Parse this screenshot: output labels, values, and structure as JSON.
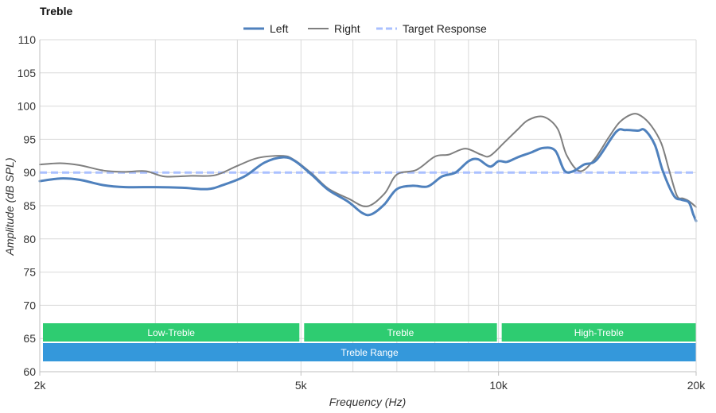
{
  "chart_data": {
    "type": "line",
    "title": "Treble",
    "xlabel": "Frequency (Hz)",
    "ylabel": "Amplitude (dB SPL)",
    "xscale": "log",
    "xlim": [
      2000,
      20000
    ],
    "ylim": [
      60,
      110
    ],
    "xticks": [
      {
        "value": 2000,
        "label": "2k"
      },
      {
        "value": 5000,
        "label": "5k"
      },
      {
        "value": 10000,
        "label": "10k"
      },
      {
        "value": 20000,
        "label": "20k"
      }
    ],
    "x_grid": [
      3000,
      4000,
      5000,
      6000,
      7000,
      8000,
      9000,
      10000
    ],
    "yticks": [
      60,
      65,
      70,
      75,
      80,
      85,
      90,
      95,
      100,
      105,
      110
    ],
    "grid": true,
    "legend_position": "top-center",
    "series": [
      {
        "name": "Left",
        "color": "#4f81bd",
        "style": "solid",
        "points": [
          [
            2000,
            88.7
          ],
          [
            2150,
            89.1
          ],
          [
            2300,
            88.9
          ],
          [
            2500,
            88.1
          ],
          [
            2700,
            87.8
          ],
          [
            3000,
            87.8
          ],
          [
            3300,
            87.7
          ],
          [
            3600,
            87.5
          ],
          [
            3800,
            88.1
          ],
          [
            4100,
            89.4
          ],
          [
            4400,
            91.5
          ],
          [
            4700,
            92.3
          ],
          [
            4900,
            91.7
          ],
          [
            5200,
            89.6
          ],
          [
            5500,
            87.4
          ],
          [
            5900,
            85.6
          ],
          [
            6200,
            83.9
          ],
          [
            6400,
            83.7
          ],
          [
            6700,
            85.2
          ],
          [
            7000,
            87.5
          ],
          [
            7400,
            88.0
          ],
          [
            7800,
            87.9
          ],
          [
            8200,
            89.4
          ],
          [
            8600,
            90.0
          ],
          [
            9000,
            91.7
          ],
          [
            9300,
            92.0
          ],
          [
            9700,
            90.9
          ],
          [
            10000,
            91.7
          ],
          [
            10300,
            91.6
          ],
          [
            10700,
            92.3
          ],
          [
            11200,
            93.0
          ],
          [
            11700,
            93.7
          ],
          [
            12200,
            93.3
          ],
          [
            12600,
            90.3
          ],
          [
            13000,
            90.2
          ],
          [
            13500,
            91.2
          ],
          [
            14100,
            91.9
          ],
          [
            15100,
            96.1
          ],
          [
            15600,
            96.4
          ],
          [
            16300,
            96.3
          ],
          [
            16700,
            96.4
          ],
          [
            17300,
            94.2
          ],
          [
            17800,
            90.2
          ],
          [
            18500,
            86.5
          ],
          [
            19000,
            85.9
          ],
          [
            19500,
            85.5
          ],
          [
            19800,
            83.7
          ],
          [
            20000,
            82.7
          ]
        ]
      },
      {
        "name": "Right",
        "color": "#7f7f7f",
        "style": "solid",
        "points": [
          [
            2000,
            91.2
          ],
          [
            2150,
            91.4
          ],
          [
            2300,
            91.1
          ],
          [
            2500,
            90.3
          ],
          [
            2700,
            90.1
          ],
          [
            2900,
            90.2
          ],
          [
            3100,
            89.4
          ],
          [
            3400,
            89.5
          ],
          [
            3700,
            89.6
          ],
          [
            4000,
            91.0
          ],
          [
            4300,
            92.2
          ],
          [
            4700,
            92.5
          ],
          [
            4900,
            91.8
          ],
          [
            5200,
            89.8
          ],
          [
            5500,
            87.6
          ],
          [
            5900,
            86.1
          ],
          [
            6300,
            84.9
          ],
          [
            6700,
            86.8
          ],
          [
            7000,
            89.7
          ],
          [
            7500,
            90.4
          ],
          [
            8000,
            92.4
          ],
          [
            8400,
            92.7
          ],
          [
            8900,
            93.6
          ],
          [
            9400,
            92.7
          ],
          [
            9700,
            92.5
          ],
          [
            10200,
            94.5
          ],
          [
            10700,
            96.5
          ],
          [
            11100,
            97.9
          ],
          [
            11700,
            98.4
          ],
          [
            12300,
            96.6
          ],
          [
            12700,
            92.6
          ],
          [
            13300,
            90.2
          ],
          [
            14000,
            92.0
          ],
          [
            14700,
            95.2
          ],
          [
            15300,
            97.6
          ],
          [
            16000,
            98.8
          ],
          [
            16500,
            98.5
          ],
          [
            17100,
            97.0
          ],
          [
            17700,
            94.4
          ],
          [
            18200,
            90.3
          ],
          [
            18700,
            86.5
          ],
          [
            19100,
            86.1
          ],
          [
            19500,
            85.7
          ],
          [
            20000,
            84.8
          ]
        ]
      },
      {
        "name": "Target Response",
        "color": "#aac0ff",
        "style": "dashed",
        "points": [
          [
            2000,
            90
          ],
          [
            20000,
            90
          ]
        ]
      }
    ],
    "bands": [
      {
        "label": "Low-Treble",
        "from": 2000,
        "to": 5000,
        "row": 0,
        "color": "#2ecc71"
      },
      {
        "label": "Treble",
        "from": 5000,
        "to": 10000,
        "row": 0,
        "color": "#2ecc71"
      },
      {
        "label": "High-Treble",
        "from": 10000,
        "to": 20000,
        "row": 0,
        "color": "#2ecc71"
      },
      {
        "label": "Treble Range",
        "from": 2000,
        "to": 20000,
        "row": 1,
        "color": "#3498db"
      }
    ]
  }
}
